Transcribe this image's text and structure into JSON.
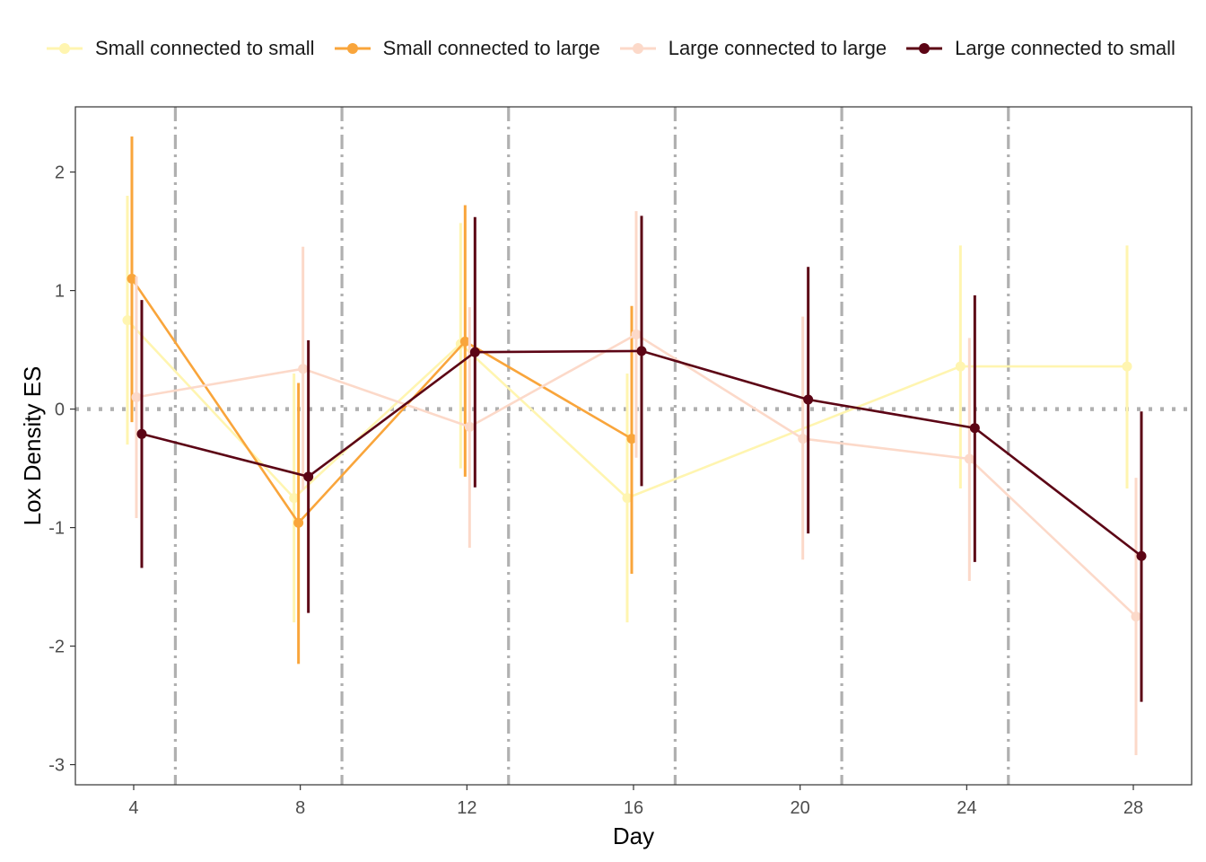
{
  "chart_data": {
    "type": "line",
    "title": "",
    "xlabel": "Day",
    "ylabel": "Lox Density ES",
    "xlim": [
      2.6,
      29.4
    ],
    "ylim": [
      -3.17,
      2.55
    ],
    "x_ticks": [
      4,
      8,
      12,
      16,
      20,
      24,
      28
    ],
    "x_tick_labels": [
      "4",
      "8",
      "12",
      "16",
      "20",
      "24",
      "28"
    ],
    "y_ticks": [
      -3,
      -2,
      -1,
      0,
      1,
      2
    ],
    "y_tick_labels": [
      "-3",
      "-2",
      "-1",
      "0",
      "1",
      "2"
    ],
    "grid": false,
    "legend_position": "top",
    "reference_lines": {
      "horizontal_zero": {
        "y": 0,
        "style": "dotted",
        "color": "#b0b0b0"
      },
      "vertical_dashdot": {
        "x": [
          5,
          9,
          13,
          17,
          21,
          25
        ],
        "style": "dashdot",
        "color": "#b0b0b0"
      }
    },
    "series": [
      {
        "name": "Small connected to small",
        "color": "#FFF5B0",
        "points": [
          {
            "x": 4,
            "y": 0.75,
            "lo": -0.3,
            "hi": 1.8
          },
          {
            "x": 8,
            "y": -0.75,
            "lo": -1.8,
            "hi": 0.3
          },
          {
            "x": 12,
            "y": 0.55,
            "lo": -0.5,
            "hi": 1.57
          },
          {
            "x": 16,
            "y": -0.75,
            "lo": -1.8,
            "hi": 0.3
          },
          {
            "x": 24,
            "y": 0.36,
            "lo": -0.67,
            "hi": 1.38
          },
          {
            "x": 28,
            "y": 0.36,
            "lo": -0.67,
            "hi": 1.38
          }
        ]
      },
      {
        "name": "Small connected to large",
        "color": "#F9A53B",
        "points": [
          {
            "x": 4,
            "y": 1.1,
            "lo": -0.11,
            "hi": 2.3
          },
          {
            "x": 8,
            "y": -0.96,
            "lo": -2.15,
            "hi": 0.22
          },
          {
            "x": 12,
            "y": 0.57,
            "lo": -0.57,
            "hi": 1.72
          },
          {
            "x": 16,
            "y": -0.25,
            "lo": -1.39,
            "hi": 0.87
          }
        ]
      },
      {
        "name": "Large connected to large",
        "color": "#FCD9C9",
        "points": [
          {
            "x": 4,
            "y": 0.1,
            "lo": -0.92,
            "hi": 1.12
          },
          {
            "x": 8,
            "y": 0.34,
            "lo": -0.68,
            "hi": 1.37
          },
          {
            "x": 12,
            "y": -0.15,
            "lo": -1.17,
            "hi": 0.86
          },
          {
            "x": 16,
            "y": 0.63,
            "lo": -0.41,
            "hi": 1.67
          },
          {
            "x": 20,
            "y": -0.25,
            "lo": -1.27,
            "hi": 0.78
          },
          {
            "x": 24,
            "y": -0.42,
            "lo": -1.45,
            "hi": 0.6
          },
          {
            "x": 28,
            "y": -1.75,
            "lo": -2.92,
            "hi": -0.58
          }
        ]
      },
      {
        "name": "Large connected to small",
        "color": "#5C0515",
        "points": [
          {
            "x": 4,
            "y": -0.21,
            "lo": -1.34,
            "hi": 0.92
          },
          {
            "x": 8,
            "y": -0.57,
            "lo": -1.72,
            "hi": 0.58
          },
          {
            "x": 12,
            "y": 0.48,
            "lo": -0.66,
            "hi": 1.62
          },
          {
            "x": 16,
            "y": 0.49,
            "lo": -0.65,
            "hi": 1.63
          },
          {
            "x": 20,
            "y": 0.08,
            "lo": -1.05,
            "hi": 1.2
          },
          {
            "x": 24,
            "y": -0.16,
            "lo": -1.29,
            "hi": 0.96
          },
          {
            "x": 28,
            "y": -1.24,
            "lo": -2.47,
            "hi": -0.02
          }
        ]
      }
    ]
  }
}
